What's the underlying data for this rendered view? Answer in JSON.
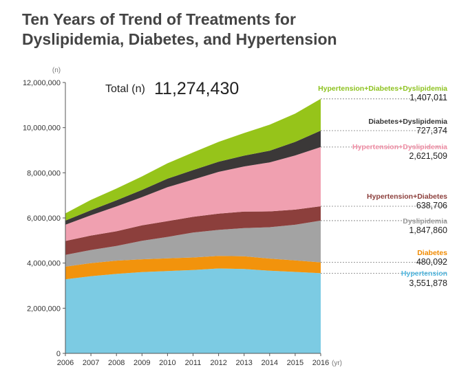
{
  "title": {
    "line1": "Ten Years of Trend of Treatments for",
    "line2": "Dyslipidemia, Diabetes, and Hypertension"
  },
  "total": {
    "label": "Total (n)",
    "value": "11,274,430"
  },
  "chart_data": {
    "type": "area",
    "stacked": true,
    "x": [
      2006,
      2007,
      2008,
      2009,
      2010,
      2011,
      2012,
      2013,
      2014,
      2015,
      2016
    ],
    "xunit": "(yr)",
    "yunit": "(n)",
    "ylim": [
      0,
      12000000
    ],
    "yticks": [
      0,
      2000000,
      4000000,
      6000000,
      8000000,
      10000000,
      12000000
    ],
    "ytick_labels": [
      "0",
      "2,000,000",
      "4,000,000",
      "6,000,000",
      "8,000,000",
      "10,000,000",
      "12,000,000"
    ],
    "grid": false,
    "series": [
      {
        "name": "Hypertension",
        "color": "#7ccbe3",
        "label_color": "#4fb6df",
        "final_label": "3,551,878",
        "values": [
          3280000,
          3420000,
          3520000,
          3600000,
          3650000,
          3690000,
          3760000,
          3740000,
          3660000,
          3610000,
          3551878
        ]
      },
      {
        "name": "Diabetes",
        "color": "#f2930c",
        "label_color": "#f08a00",
        "final_label": "480,092",
        "values": [
          560000,
          580000,
          590000,
          570000,
          560000,
          560000,
          560000,
          560000,
          540000,
          510000,
          480092
        ]
      },
      {
        "name": "Dyslipidemia",
        "color": "#a3a3a3",
        "label_color": "#999999",
        "final_label": "1,847,860",
        "values": [
          520000,
          580000,
          650000,
          820000,
          950000,
          1100000,
          1150000,
          1250000,
          1390000,
          1580000,
          1847860
        ]
      },
      {
        "name": "Hypertension+Diabetes",
        "color": "#8c3f3c",
        "label_color": "#8c3f3c",
        "final_label": "638,706",
        "values": [
          620000,
          640000,
          650000,
          680000,
          700000,
          700000,
          720000,
          730000,
          700000,
          670000,
          638706
        ]
      },
      {
        "name": "Hypertension+Dyslipidemia",
        "color": "#f0a0b0",
        "label_color": "#f08ea5",
        "final_label": "2,621,509",
        "values": [
          720000,
          900000,
          1100000,
          1250000,
          1500000,
          1650000,
          1850000,
          2000000,
          2170000,
          2400000,
          2621509
        ]
      },
      {
        "name": "Diabetes+Dyslipidemia",
        "color": "#3b3838",
        "label_color": "#333333",
        "final_label": "727,374",
        "values": [
          180000,
          220000,
          270000,
          320000,
          380000,
          420000,
          450000,
          480000,
          520000,
          600000,
          727374
        ]
      },
      {
        "name": "Hypertension+Diabetes+Dyslipidemia",
        "color": "#96c41a",
        "label_color": "#8dc21f",
        "final_label": "1,407,011",
        "values": [
          320000,
          460000,
          520000,
          600000,
          680000,
          780000,
          880000,
          1000000,
          1150000,
          1250000,
          1407011
        ]
      }
    ]
  }
}
